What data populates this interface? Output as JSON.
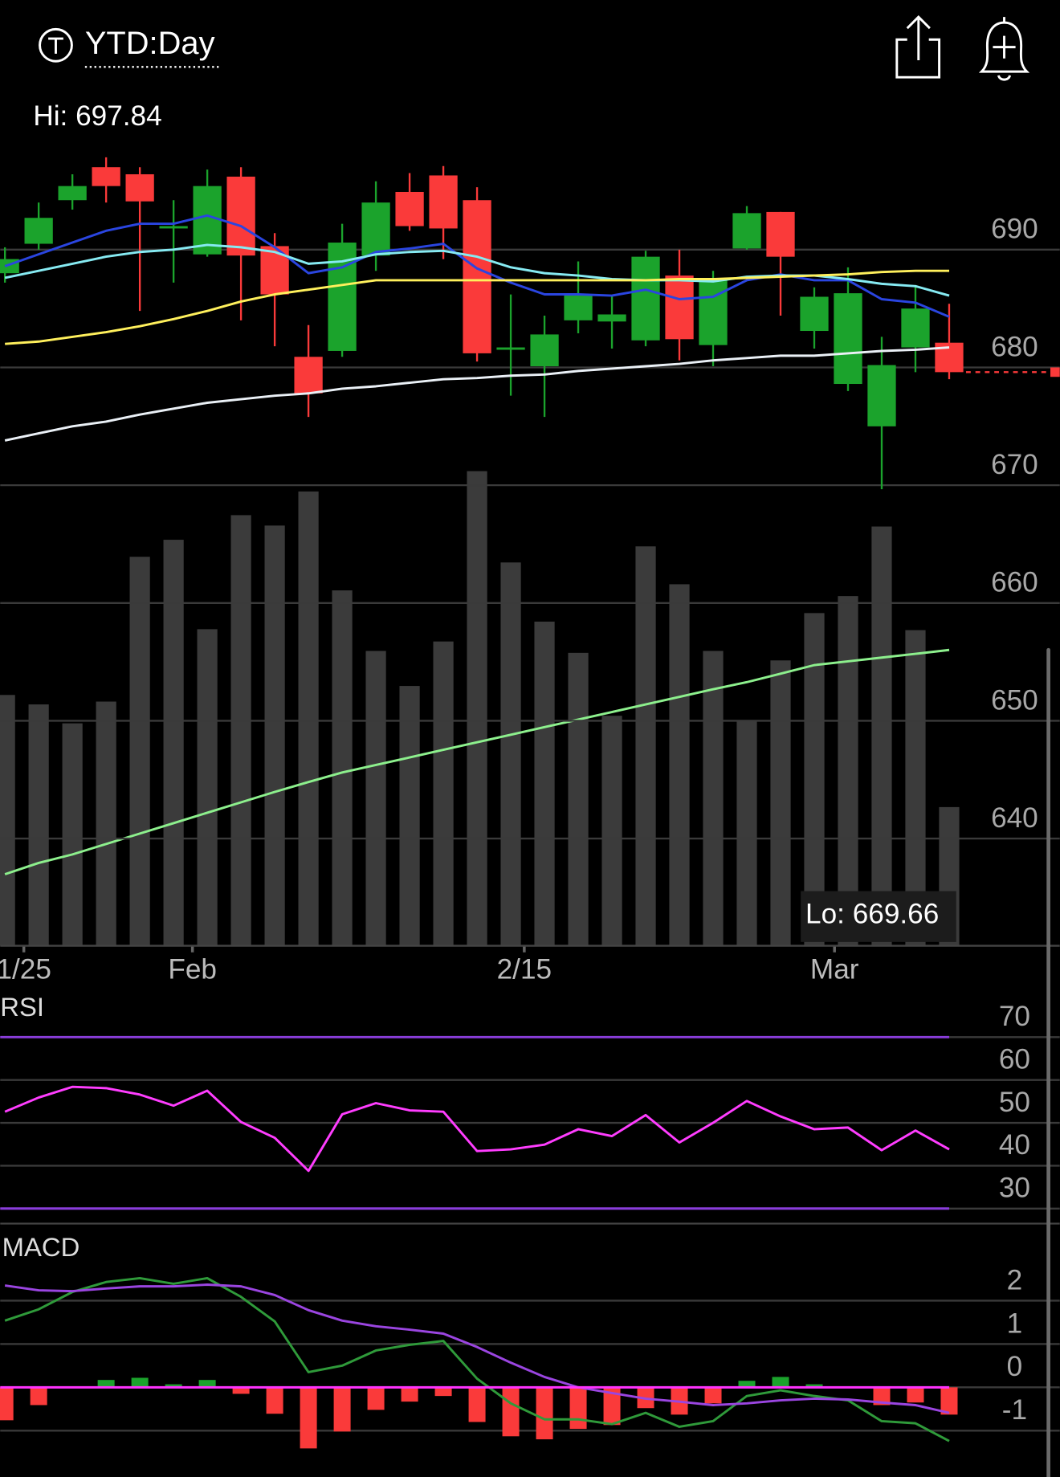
{
  "header": {
    "title": "YTD:Day"
  },
  "chart_data": [
    {
      "type": "candlestick",
      "open": [
        688.0,
        690.5,
        694.2,
        697.0,
        696.4,
        691.8,
        689.6,
        696.2,
        690.3,
        680.9,
        681.4,
        689.5,
        694.9,
        696.3,
        694.2,
        681.5,
        680.1,
        684.0,
        683.9,
        682.3,
        687.8,
        681.9,
        690.1,
        693.2,
        683.1,
        678.6,
        675.0,
        681.7,
        682.1
      ],
      "high": [
        690.2,
        694.0,
        696.4,
        697.84,
        697.0,
        694.2,
        696.8,
        697.0,
        691.4,
        683.6,
        692.2,
        695.8,
        696.5,
        697.1,
        695.3,
        686.2,
        684.4,
        689.0,
        686.1,
        689.9,
        690.0,
        688.2,
        693.7,
        693.2,
        686.8,
        688.5,
        682.6,
        687.0,
        685.4
      ],
      "low": [
        687.2,
        690.0,
        693.4,
        694.0,
        684.8,
        687.2,
        689.4,
        684.0,
        681.8,
        675.8,
        680.9,
        688.2,
        691.6,
        689.2,
        680.5,
        677.6,
        675.8,
        682.9,
        681.6,
        681.8,
        680.6,
        680.1,
        690.0,
        684.4,
        681.6,
        678.0,
        669.66,
        679.6,
        679.0
      ],
      "close": [
        689.2,
        692.7,
        695.4,
        695.4,
        694.1,
        692.0,
        695.4,
        689.5,
        686.2,
        677.8,
        690.6,
        694.0,
        692.0,
        691.8,
        681.2,
        681.7,
        682.8,
        686.1,
        684.5,
        689.4,
        682.4,
        687.4,
        693.1,
        689.4,
        686.0,
        686.3,
        680.2,
        685.0,
        679.6
      ],
      "up_color": "#1ba32c",
      "down_color": "#fa3a3a",
      "xlim": [
        -0.14,
        31.28
      ],
      "xticks": [
        {
          "value": 0.56,
          "label": "1/25"
        },
        {
          "value": 5.56,
          "label": "Feb"
        },
        {
          "value": 15.4,
          "label": "2/15"
        },
        {
          "value": 24.6,
          "label": "Mar"
        }
      ],
      "ylim": [
        630.9,
        700
      ],
      "yticks": [
        640,
        650,
        660,
        670,
        680,
        690
      ],
      "grid": true,
      "series": [
        {
          "color": "#2a45e0",
          "values": [
            688.6,
            689.6,
            690.6,
            691.6,
            692.2,
            692.2,
            692.9,
            692.0,
            690.2,
            688.0,
            688.5,
            689.8,
            690.1,
            690.5,
            688.4,
            687.2,
            686.2,
            686.2,
            686.1,
            686.6,
            685.8,
            686.0,
            687.4,
            687.9,
            687.4,
            687.4,
            685.8,
            685.5,
            684.3
          ]
        },
        {
          "color": "#86eaf2",
          "values": [
            687.6,
            688.2,
            688.8,
            689.4,
            689.8,
            690.0,
            690.4,
            690.2,
            689.8,
            688.8,
            689.0,
            689.6,
            689.8,
            689.9,
            689.4,
            688.5,
            688.0,
            687.8,
            687.5,
            687.4,
            687.4,
            687.3,
            687.7,
            687.8,
            687.8,
            687.5,
            687.1,
            686.9,
            686.1
          ]
        },
        {
          "color": "#fff05c",
          "values": [
            682.0,
            682.2,
            682.6,
            683.0,
            683.5,
            684.1,
            684.8,
            685.6,
            686.2,
            686.6,
            687.0,
            687.4,
            687.4,
            687.4,
            687.4,
            687.4,
            687.4,
            687.4,
            687.4,
            687.4,
            687.5,
            687.5,
            687.6,
            687.7,
            687.8,
            687.9,
            688.1,
            688.2,
            688.2
          ]
        },
        {
          "color": "#eaf0f6",
          "values": [
            673.8,
            674.4,
            675.0,
            675.4,
            676.0,
            676.5,
            677.0,
            677.3,
            677.6,
            677.8,
            678.2,
            678.4,
            678.7,
            679.0,
            679.1,
            679.3,
            679.4,
            679.7,
            679.9,
            680.1,
            680.3,
            680.6,
            680.8,
            681.0,
            681.0,
            681.2,
            681.4,
            681.5,
            681.7
          ]
        }
      ],
      "volume": {
        "color": "#3b3b3b",
        "axis": "y2",
        "values": [
          53.0,
          51.0,
          47.0,
          51.6,
          82.2,
          85.8,
          66.9,
          91.0,
          88.8,
          96.0,
          75.1,
          62.3,
          54.9,
          64.3,
          100.3,
          81.0,
          68.5,
          61.9,
          48.6,
          84.4,
          76.4,
          62.3,
          47.6,
          60.3,
          70.3,
          73.9,
          88.6,
          66.7,
          29.3
        ]
      },
      "volume_ma": {
        "color": "#8df08d",
        "axis": "y2",
        "values": [
          15.1,
          17.5,
          19.3,
          21.5,
          23.7,
          25.9,
          28.1,
          30.3,
          32.5,
          34.6,
          36.6,
          38.2,
          39.8,
          41.4,
          43.0,
          44.6,
          46.2,
          47.8,
          49.4,
          51.0,
          52.6,
          54.2,
          55.7,
          57.5,
          59.3,
          60.1,
          60.9,
          61.7,
          62.5
        ]
      },
      "y2lim": [
        0,
        172
      ],
      "hi_label": "Hi: 697.84",
      "lo_label": "Lo: 669.66",
      "current_price_line": true
    },
    {
      "type": "line",
      "title": "RSI",
      "series": [
        {
          "color": "#ff3dff",
          "values": [
            52.6,
            55.9,
            58.4,
            58.1,
            56.6,
            54.0,
            57.5,
            50.2,
            46.5,
            38.8,
            52.0,
            54.6,
            52.9,
            52.6,
            43.4,
            43.8,
            44.9,
            48.5,
            46.9,
            51.8,
            45.4,
            50.0,
            55.1,
            51.5,
            48.5,
            48.9,
            43.6,
            48.2,
            43.8
          ]
        }
      ],
      "ylim": [
        26.4,
        80
      ],
      "yticks": [
        30,
        40,
        50,
        60,
        70
      ],
      "bands": [
        30,
        70
      ],
      "band_color": "#8a3ddb",
      "grid": true
    },
    {
      "type": "macd",
      "title": "MACD",
      "series": [
        {
          "color": "#2f9a3a",
          "values": [
            1.54,
            1.8,
            2.2,
            2.43,
            2.52,
            2.39,
            2.52,
            2.09,
            1.52,
            0.35,
            0.5,
            0.85,
            0.98,
            1.07,
            0.2,
            -0.37,
            -0.74,
            -0.74,
            -0.85,
            -0.59,
            -0.91,
            -0.78,
            -0.2,
            -0.07,
            -0.2,
            -0.3,
            -0.78,
            -0.83,
            -1.24
          ]
        },
        {
          "color": "#9a45e0",
          "values": [
            2.35,
            2.24,
            2.22,
            2.28,
            2.33,
            2.33,
            2.37,
            2.33,
            2.13,
            1.78,
            1.54,
            1.41,
            1.33,
            1.24,
            0.93,
            0.57,
            0.24,
            0,
            -0.13,
            -0.26,
            -0.33,
            -0.41,
            -0.37,
            -0.3,
            -0.26,
            -0.28,
            -0.35,
            -0.41,
            -0.59
          ]
        }
      ],
      "histogram": {
        "up_color": "#1ba32c",
        "down_color": "#fa3a3a",
        "values": [
          -0.76,
          -0.41,
          0,
          0.17,
          0.22,
          0.07,
          0.17,
          -0.15,
          -0.61,
          -1.41,
          -1.02,
          -0.52,
          -0.33,
          -0.2,
          -0.8,
          -1.13,
          -1.2,
          -0.96,
          -0.87,
          -0.48,
          -0.63,
          -0.37,
          0.15,
          0.24,
          0.07,
          0,
          -0.41,
          -0.35,
          -0.63
        ]
      },
      "ylim": [
        -2.07,
        3.54
      ],
      "yticks": [
        -1,
        0,
        1,
        2
      ],
      "zero_line_color": "#ff33ff",
      "grid": true
    }
  ]
}
